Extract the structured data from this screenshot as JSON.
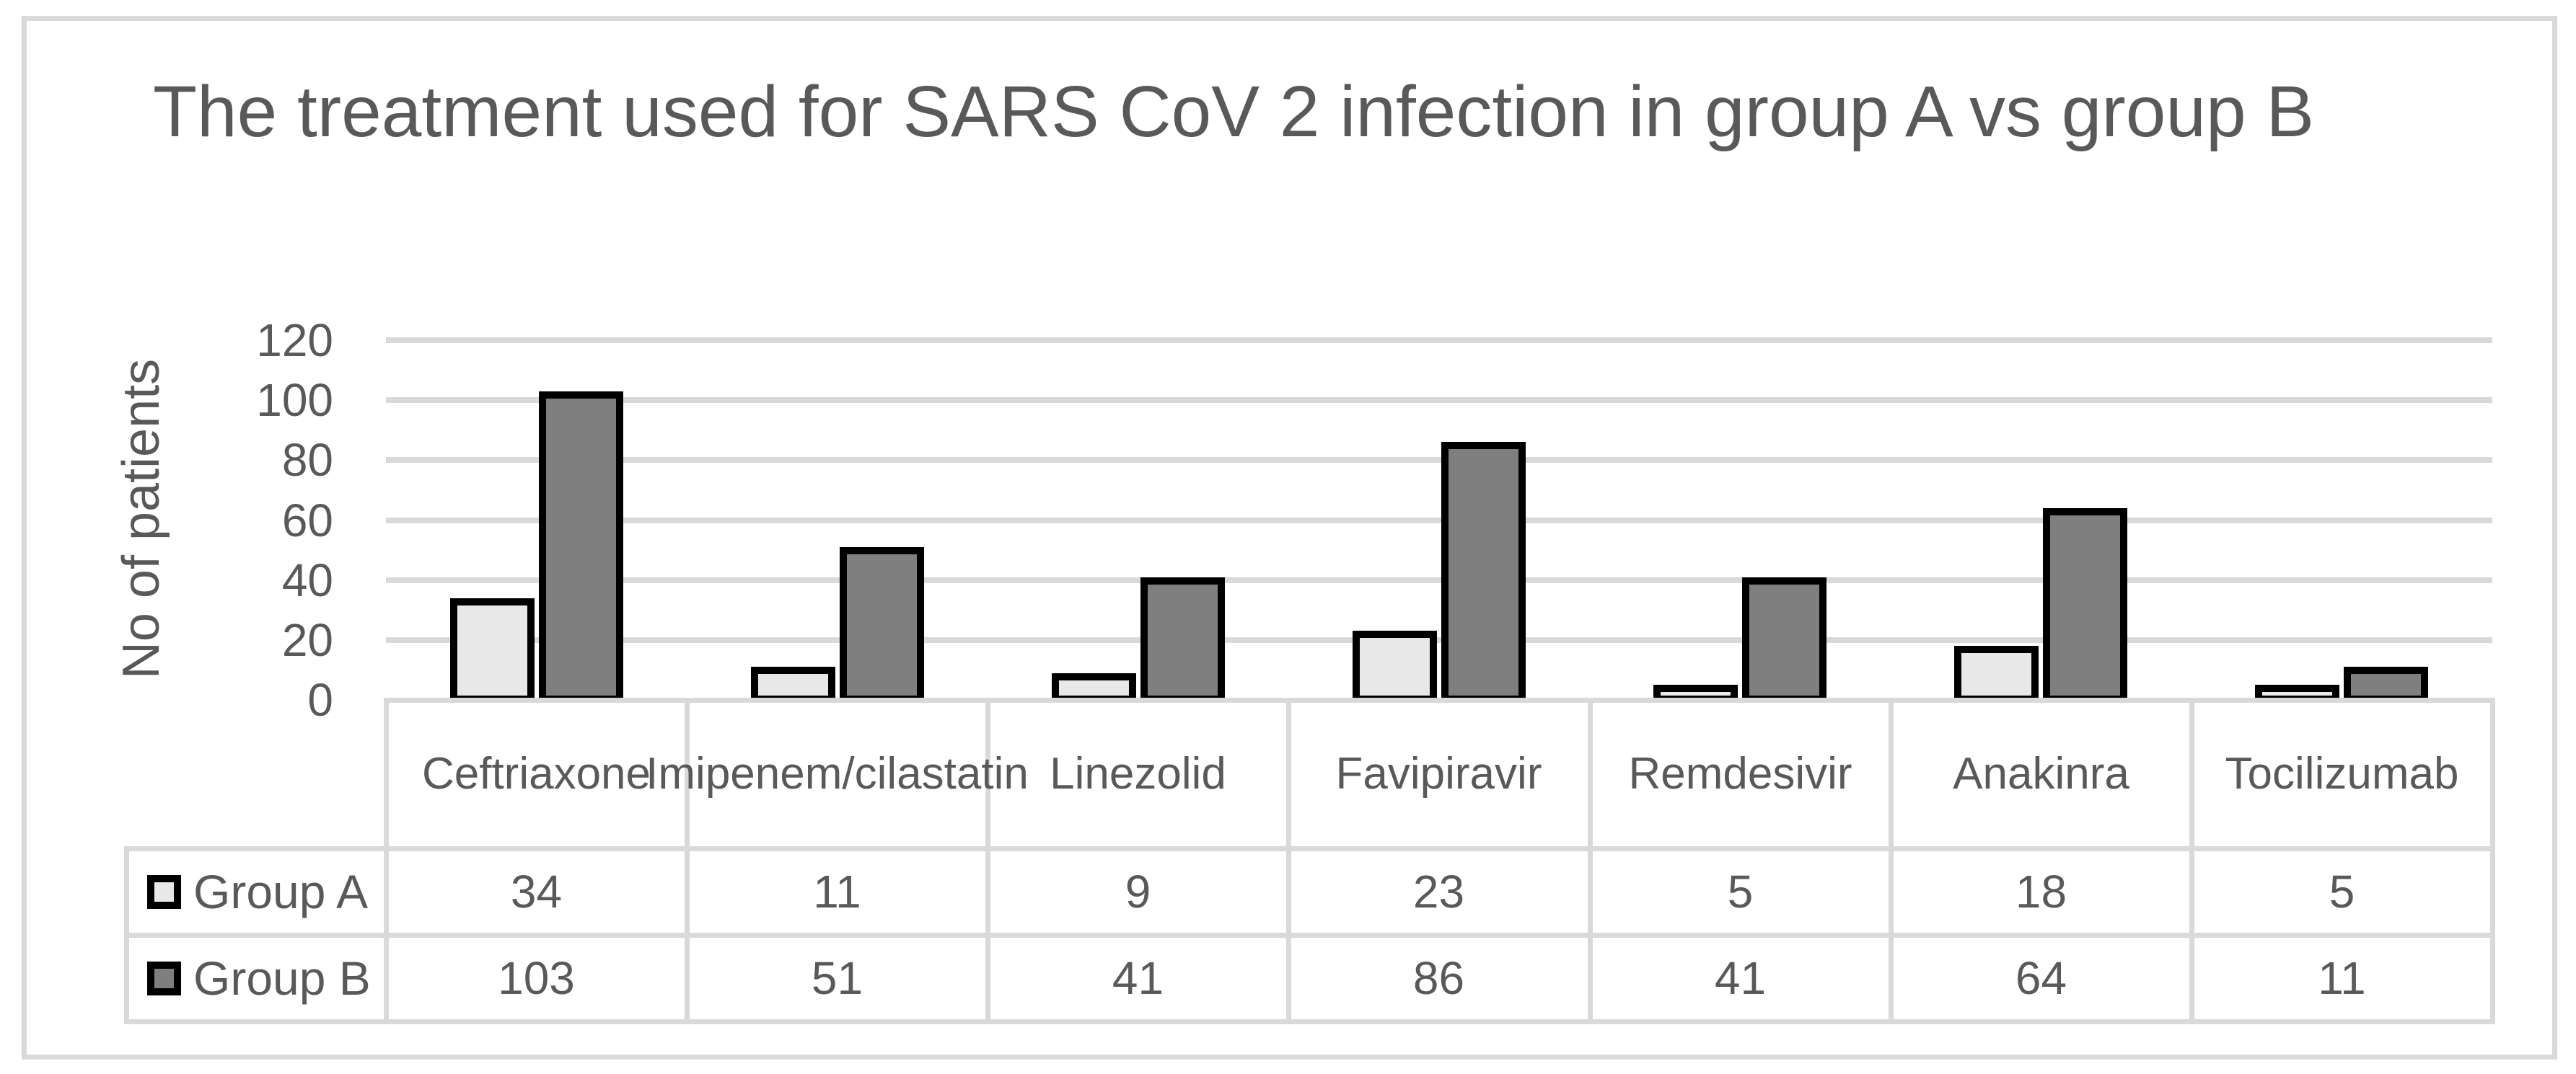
{
  "figure": {
    "background": "#ffffff",
    "frame_color": "#d9d9d9"
  },
  "chart_data": {
    "type": "bar",
    "title": "The treatment used for SARS CoV 2 infection in group A vs group B",
    "ylabel": "No of patients",
    "xlabel": "",
    "categories": [
      "Ceftriaxone",
      "Imipenem/cilastatin",
      "Linezolid",
      "Favipiravir",
      "Remdesivir",
      "Anakinra",
      "Tocilizumab"
    ],
    "series": [
      {
        "name": "Group A",
        "fill": "#e8e8e8",
        "border": "#000000",
        "values": [
          34,
          11,
          9,
          23,
          5,
          18,
          5
        ]
      },
      {
        "name": "Group B",
        "fill": "#7f7f7f",
        "border": "#000000",
        "values": [
          103,
          51,
          41,
          86,
          41,
          64,
          11
        ]
      }
    ],
    "ylim": [
      0,
      120
    ],
    "yticks": [
      0,
      20,
      40,
      60,
      80,
      100,
      120
    ],
    "grid": true,
    "gridline_color": "#d9d9d9",
    "text_color": "#595959",
    "legend_position": "data-table-row-headers",
    "data_table_shown": true
  }
}
